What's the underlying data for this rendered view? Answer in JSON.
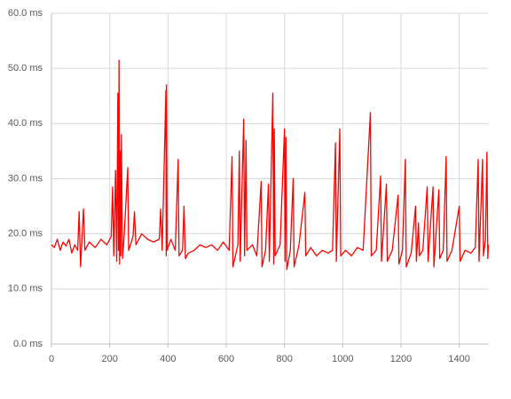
{
  "chart_data": {
    "type": "line",
    "x": [
      0,
      10,
      20,
      30,
      40,
      50,
      60,
      70,
      80,
      90,
      95,
      100,
      110,
      115,
      130,
      150,
      170,
      190,
      205,
      210,
      214,
      220,
      224,
      228,
      230,
      232,
      234,
      236,
      238,
      240,
      244,
      250,
      262,
      265,
      280,
      285,
      290,
      310,
      330,
      350,
      370,
      375,
      380,
      393,
      394,
      395,
      397,
      410,
      425,
      435,
      438,
      450,
      455,
      460,
      470,
      490,
      510,
      530,
      550,
      570,
      590,
      610,
      620,
      623,
      640,
      645,
      648,
      660,
      663,
      668,
      671,
      690,
      705,
      720,
      723,
      735,
      745,
      748,
      760,
      763,
      765,
      768,
      785,
      800,
      802,
      805,
      808,
      820,
      830,
      833,
      850,
      870,
      873,
      890,
      910,
      930,
      950,
      965,
      975,
      978,
      990,
      993,
      1010,
      1030,
      1050,
      1070,
      1095,
      1098,
      1115,
      1130,
      1133,
      1150,
      1153,
      1170,
      1190,
      1193,
      1205,
      1215,
      1218,
      1235,
      1250,
      1253,
      1260,
      1263,
      1275,
      1290,
      1293,
      1310,
      1313,
      1330,
      1333,
      1345,
      1355,
      1358,
      1375,
      1400,
      1403,
      1420,
      1440,
      1455,
      1465,
      1468,
      1480,
      1483,
      1490,
      1495,
      1498,
      1500
    ],
    "series": [
      {
        "color": "#ff0000",
        "values": [
          18,
          17.5,
          19,
          17,
          18.5,
          17.8,
          19,
          16.5,
          18,
          17,
          24,
          14,
          24.5,
          17,
          18.5,
          17.5,
          19,
          18,
          19.5,
          28.5,
          16,
          31.5,
          15,
          45.5,
          17,
          51.5,
          14.5,
          35,
          16,
          38,
          15.5,
          20,
          32,
          17,
          19.5,
          24,
          18,
          20,
          19,
          18.5,
          19,
          24.5,
          17,
          46,
          16,
          47,
          17,
          19,
          17,
          33.5,
          16,
          17,
          25,
          15.5,
          16.5,
          17,
          18,
          17.5,
          18,
          17,
          18.5,
          17,
          34,
          14,
          18,
          35,
          15,
          40.8,
          16,
          37,
          17,
          18,
          16,
          29.5,
          14,
          17,
          29,
          15,
          45.5,
          14.5,
          39,
          16,
          18,
          39,
          15,
          37.5,
          13.5,
          17,
          30,
          14,
          18,
          27.5,
          16,
          17.5,
          16,
          17,
          16.5,
          17,
          36.5,
          15,
          39,
          16,
          17,
          16,
          17.5,
          17,
          42,
          16,
          17,
          30.5,
          15,
          29,
          15,
          17,
          27,
          14.5,
          17,
          33.5,
          14,
          16.5,
          25,
          15,
          22,
          16,
          17,
          28.5,
          15,
          28.5,
          14,
          28,
          15.5,
          17,
          34,
          15,
          17,
          25,
          15,
          17,
          16.5,
          17.5,
          33.5,
          15,
          33.5,
          16,
          19,
          34.8,
          15.5,
          18
        ]
      }
    ],
    "xlim": [
      0,
      1500
    ],
    "xticks": [
      0,
      200,
      400,
      600,
      800,
      1000,
      1200,
      1400
    ],
    "ylim": [
      0,
      60
    ],
    "yticks": [
      {
        "value": 0,
        "label": "0.0 ms"
      },
      {
        "value": 10,
        "label": "10.0 ms"
      },
      {
        "value": 20,
        "label": "20.0 ms"
      },
      {
        "value": 30,
        "label": "30.0 ms"
      },
      {
        "value": 40,
        "label": "40.0 ms"
      },
      {
        "value": 50,
        "label": "50.0 ms"
      },
      {
        "value": 60,
        "label": "60.0 ms"
      }
    ],
    "grid": true
  }
}
